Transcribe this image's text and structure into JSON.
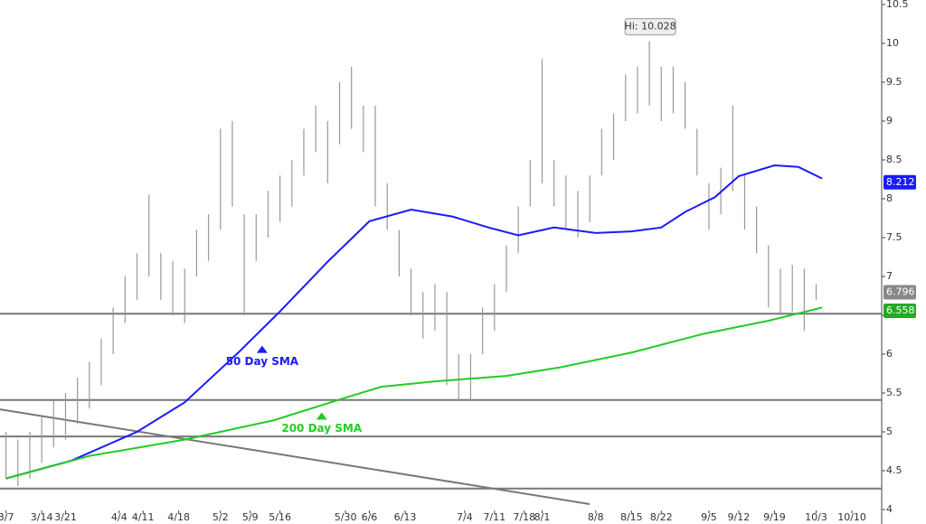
{
  "chart_data": {
    "type": "ohlc",
    "x": [
      0,
      2,
      4,
      6,
      8,
      10,
      12,
      14,
      16,
      18,
      20,
      22,
      24,
      26,
      28,
      30,
      32,
      34,
      36,
      38,
      40,
      42,
      44,
      46,
      48,
      50,
      52,
      54,
      56,
      58,
      60,
      62,
      64,
      66,
      68,
      70,
      72,
      74,
      76,
      78,
      80,
      82,
      84,
      86,
      88,
      90,
      92,
      94,
      96,
      98,
      100,
      102,
      104,
      106,
      108,
      110,
      112,
      114,
      116,
      118,
      120,
      122,
      124,
      126,
      128,
      130,
      132,
      134,
      136
    ],
    "high": [
      5.0,
      4.9,
      5.0,
      5.2,
      5.4,
      5.5,
      5.7,
      5.9,
      6.2,
      6.6,
      7.0,
      7.3,
      8.05,
      7.3,
      7.2,
      7.1,
      7.6,
      7.8,
      8.9,
      9.0,
      7.8,
      7.8,
      8.1,
      8.3,
      8.5,
      8.9,
      9.2,
      9.0,
      9.5,
      9.7,
      9.2,
      9.2,
      8.2,
      7.6,
      7.1,
      6.8,
      6.9,
      6.8,
      6.0,
      6.0,
      6.6,
      6.9,
      7.4,
      7.9,
      8.5,
      9.8,
      8.5,
      8.3,
      8.1,
      8.3,
      8.9,
      9.1,
      9.6,
      9.7,
      10.028,
      9.7,
      9.7,
      9.5,
      8.9,
      8.2,
      8.4,
      9.2,
      8.3,
      7.9,
      7.4,
      7.1,
      7.15,
      7.1,
      6.9
    ],
    "low": [
      4.4,
      4.3,
      4.4,
      4.6,
      4.8,
      4.9,
      5.1,
      5.3,
      5.6,
      6.0,
      6.4,
      6.7,
      7.0,
      6.7,
      6.5,
      6.4,
      7.0,
      7.2,
      7.6,
      7.9,
      6.5,
      7.2,
      7.5,
      7.7,
      7.9,
      8.3,
      8.6,
      8.2,
      8.7,
      8.9,
      8.6,
      7.9,
      7.6,
      7.0,
      6.5,
      6.2,
      6.3,
      5.6,
      5.4,
      5.4,
      6.0,
      6.3,
      6.8,
      7.3,
      7.9,
      8.2,
      7.9,
      7.6,
      7.5,
      7.7,
      8.3,
      8.5,
      9.0,
      9.1,
      9.2,
      9.0,
      9.1,
      8.9,
      8.3,
      7.6,
      7.8,
      8.1,
      7.6,
      7.3,
      6.6,
      6.5,
      6.55,
      6.3,
      6.7
    ],
    "bar_color": "#999999",
    "series": [
      {
        "name": "50 Day SMA",
        "color": "#1a1aff",
        "x": [
          0,
          11,
          22,
          30,
          39,
          46,
          54,
          61,
          68,
          75,
          81,
          86,
          92,
          99,
          105,
          110,
          114,
          119,
          123,
          129,
          133,
          137
        ],
        "values": [
          4.4,
          4.63,
          5.0,
          5.38,
          6.02,
          6.55,
          7.19,
          7.71,
          7.86,
          7.77,
          7.63,
          7.53,
          7.63,
          7.56,
          7.58,
          7.63,
          7.83,
          8.02,
          8.29,
          8.43,
          8.41,
          8.26
        ],
        "label_x": 43,
        "label_y": 5.9
      },
      {
        "name": "200 Day SMA",
        "color": "#22cc22",
        "x": [
          0,
          14,
          30,
          45,
          57,
          63,
          72,
          84,
          93,
          105,
          117,
          128,
          137
        ],
        "values": [
          4.4,
          4.69,
          4.9,
          5.15,
          5.44,
          5.58,
          5.65,
          5.72,
          5.83,
          6.02,
          6.26,
          6.43,
          6.6
        ],
        "label_x": 53,
        "label_y": 5.04
      }
    ],
    "hlines": [
      6.52,
      5.41,
      4.94,
      4.27
    ],
    "trendline": {
      "x": [
        -1,
        98
      ],
      "values": [
        5.29,
        4.07
      ]
    },
    "high_label": {
      "text": "Hi: 10.028",
      "x": 108,
      "y": 10.028
    },
    "end_labels": [
      {
        "value": 8.212,
        "color": "#1a1aff"
      },
      {
        "value": 6.796,
        "color": "#888888"
      },
      {
        "value": 6.558,
        "color": "#22aa22"
      }
    ],
    "xlim": [
      -1,
      147
    ],
    "xticks": [
      {
        "value": 0,
        "label": "3/7"
      },
      {
        "value": 6,
        "label": "3/14"
      },
      {
        "value": 10,
        "label": "3/21"
      },
      {
        "value": 19,
        "label": "4/4"
      },
      {
        "value": 23,
        "label": "4/11"
      },
      {
        "value": 29,
        "label": "4/18"
      },
      {
        "value": 36,
        "label": "5/2"
      },
      {
        "value": 41,
        "label": "5/9"
      },
      {
        "value": 46,
        "label": "5/16"
      },
      {
        "value": 57,
        "label": "5/30"
      },
      {
        "value": 61,
        "label": "6/6"
      },
      {
        "value": 67,
        "label": "6/13"
      },
      {
        "value": 77,
        "label": "7/4"
      },
      {
        "value": 82,
        "label": "7/11"
      },
      {
        "value": 87,
        "label": "7/18"
      },
      {
        "value": 90,
        "label": "8/1"
      },
      {
        "value": 99,
        "label": "8/8"
      },
      {
        "value": 105,
        "label": "8/15"
      },
      {
        "value": 110,
        "label": "8/22"
      },
      {
        "value": 118,
        "label": "9/5"
      },
      {
        "value": 123,
        "label": "9/12"
      },
      {
        "value": 129,
        "label": "9/19"
      },
      {
        "value": 136,
        "label": "10/3"
      },
      {
        "value": 142,
        "label": "10/10"
      }
    ],
    "ylim": [
      4,
      10.5
    ],
    "yticks": [
      4,
      4.5,
      5,
      5.5,
      6,
      6.5,
      7,
      7.5,
      8,
      8.5,
      9,
      9.5,
      10,
      10.5
    ]
  }
}
